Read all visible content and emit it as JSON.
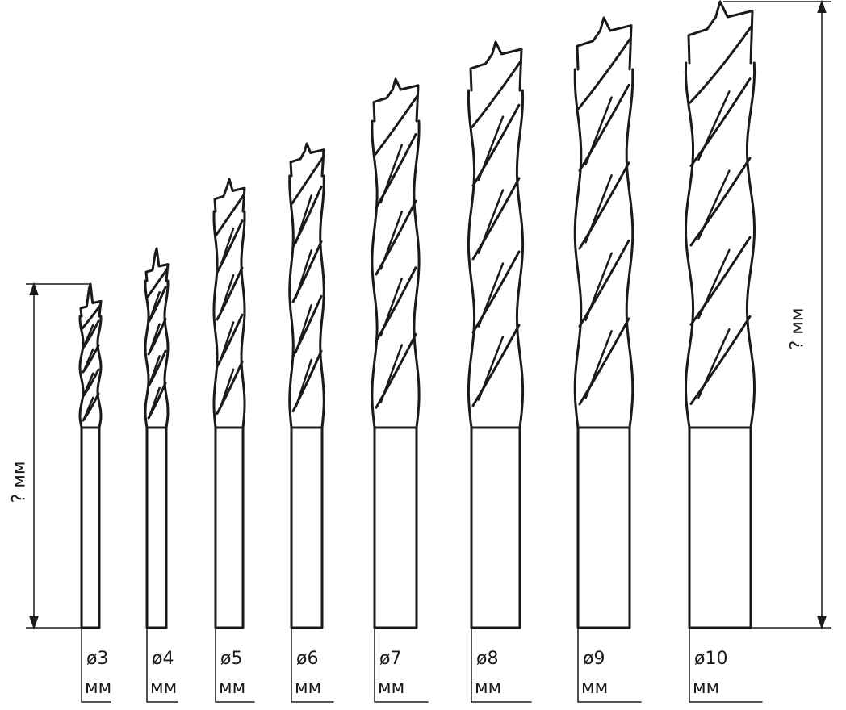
{
  "diagram": {
    "unknown_length_label": "? мм",
    "stroke_color": "#1a1a1a",
    "bits": [
      {
        "diameter": "ø3",
        "unit": "мм"
      },
      {
        "diameter": "ø4",
        "unit": "мм"
      },
      {
        "diameter": "ø5",
        "unit": "мм"
      },
      {
        "diameter": "ø6",
        "unit": "мм"
      },
      {
        "diameter": "ø7",
        "unit": "мм"
      },
      {
        "diameter": "ø8",
        "unit": "мм"
      },
      {
        "diameter": "ø9",
        "unit": "мм"
      },
      {
        "diameter": "ø10",
        "unit": "мм"
      }
    ]
  }
}
